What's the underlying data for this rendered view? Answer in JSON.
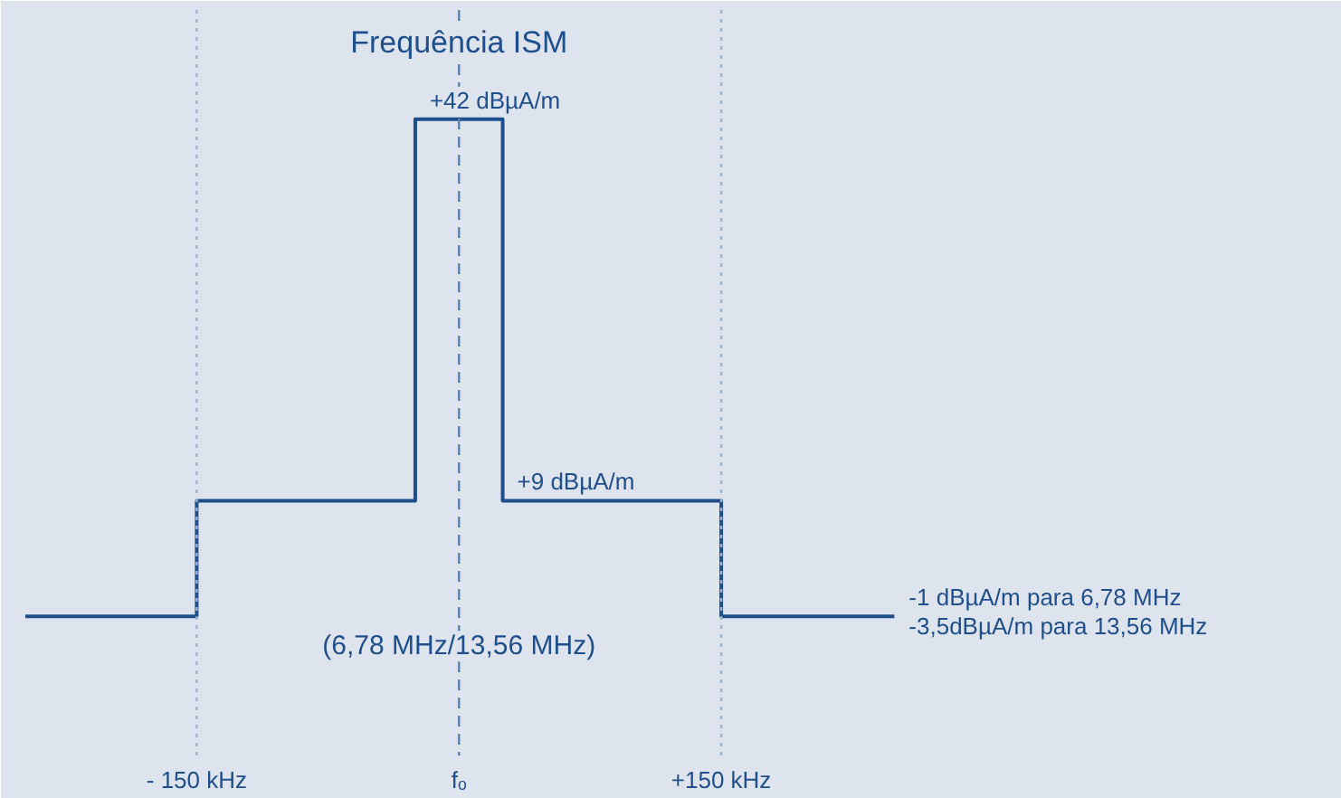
{
  "chart_data": {
    "type": "step",
    "x": [
      -248,
      -150,
      -25,
      25,
      150,
      249
    ],
    "series": [
      {
        "color": "#1f4e8c",
        "values": [
          -1,
          9,
          42,
          9,
          -1,
          -1
        ],
        "value_labels": [
          null,
          null,
          "+42 dBµA/m",
          "+9 dBµA/m",
          null,
          "-1 dBµA/m para 6,78 MHz"
        ]
      }
    ],
    "xlim": [
      -262,
      505
    ],
    "xticks": [
      {
        "value": -150,
        "label": "- 150 kHz"
      },
      {
        "value": 0,
        "label": "fₒ"
      },
      {
        "value": 150,
        "label": "+150 kHz"
      }
    ],
    "tick_labels": "x",
    "grid": false,
    "line_style": "solid",
    "marker": "none",
    "ref_lines": [
      {
        "axis": "x",
        "value": 0,
        "label": "Frequência ISM",
        "color": "#5b7fae",
        "line_style": "dashed"
      },
      {
        "axis": "x",
        "value": -150,
        "label": null,
        "color": "#9fb3cc",
        "line_style": "dotted"
      },
      {
        "axis": "x",
        "value": 150,
        "label": null,
        "color": "#9fb3cc",
        "line_style": "dotted"
      }
    ],
    "annotations": [
      {
        "text": "-3,5dBµA/m para 13,56 MHz",
        "x": 249,
        "y": -1
      },
      {
        "text": "(6,78 MHz/13,56 MHz)",
        "x": 0
      }
    ]
  }
}
